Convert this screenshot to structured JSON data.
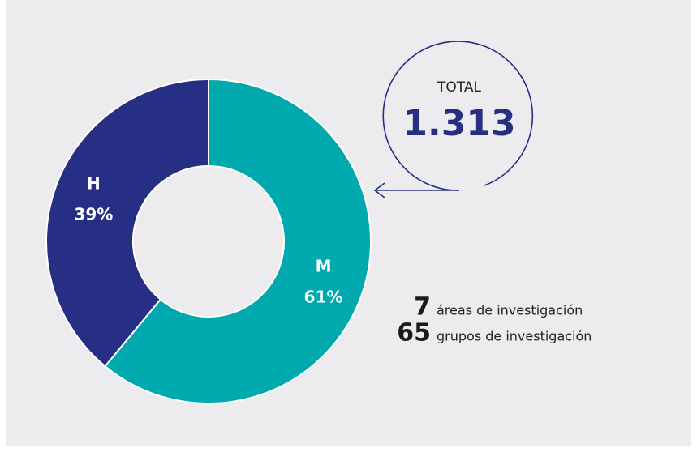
{
  "chart_data": {
    "type": "pie",
    "donut": true,
    "categories": [
      "M",
      "H"
    ],
    "values": [
      61,
      39
    ],
    "value_labels": [
      "61%",
      "39%"
    ],
    "colors": [
      "#00a9ad",
      "#262f84"
    ],
    "total_label": "TOTAL",
    "total_value": "1.313",
    "stats": [
      {
        "number": "7",
        "text": "áreas de investigación"
      },
      {
        "number": "65",
        "text": "grupos de investigación"
      }
    ]
  }
}
